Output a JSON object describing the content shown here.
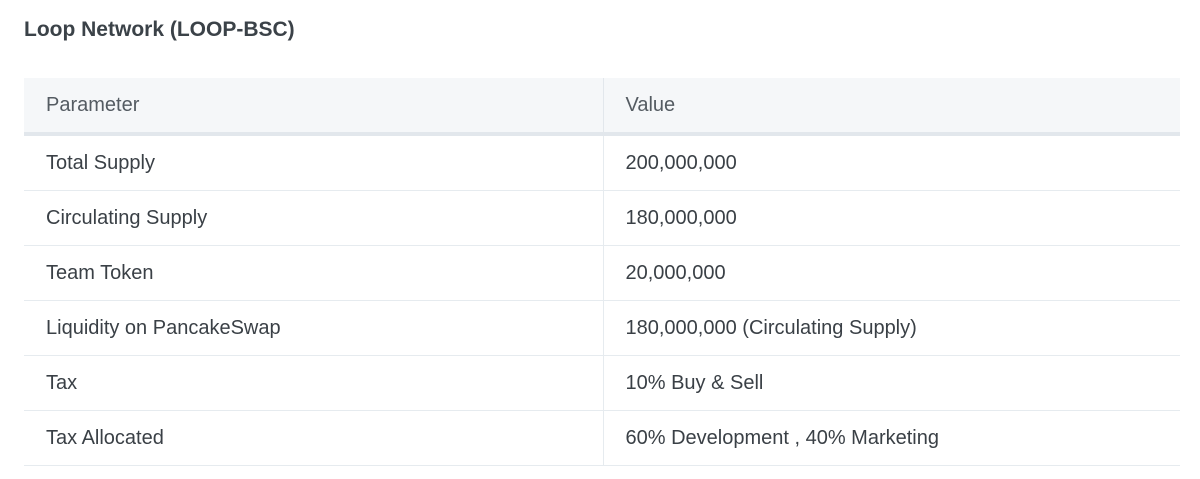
{
  "title": "Loop Network (LOOP-BSC)",
  "table": {
    "headers": [
      "Parameter",
      "Value"
    ],
    "rows": [
      {
        "parameter": "Total Supply",
        "value": "200,000,000"
      },
      {
        "parameter": "Circulating Supply",
        "value": "180,000,000"
      },
      {
        "parameter": "Team Token",
        "value": "20,000,000"
      },
      {
        "parameter": "Liquidity on PancakeSwap",
        "value": "180,000,000 (Circulating Supply)"
      },
      {
        "parameter": "Tax",
        "value": "10% Buy & Sell"
      },
      {
        "parameter": "Tax Allocated",
        "value": "60% Development , 40% Marketing"
      }
    ]
  }
}
